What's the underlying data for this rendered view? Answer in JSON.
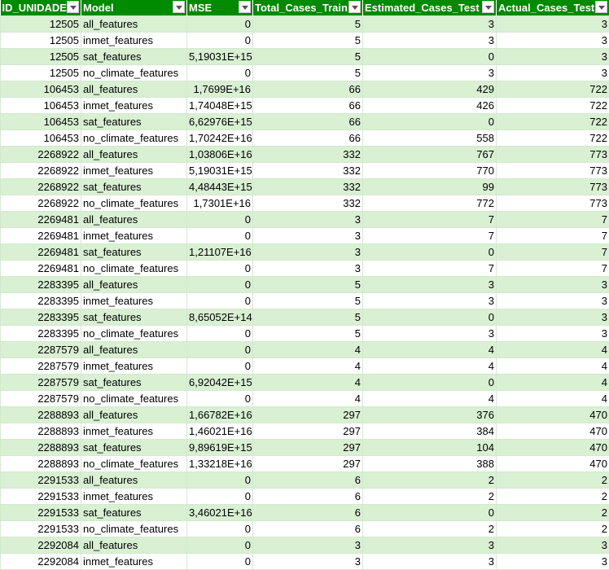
{
  "headers": [
    "ID_UNIDADE",
    "Model",
    "MSE",
    "Total_Cases_Train",
    "Estimated_Cases_Test",
    "Actual_Cases_Test"
  ],
  "rows": [
    [
      "12505",
      "all_features",
      "0",
      "5",
      "3",
      "3"
    ],
    [
      "12505",
      "inmet_features",
      "0",
      "5",
      "3",
      "3"
    ],
    [
      "12505",
      "sat_features",
      "5,19031E+15",
      "5",
      "0",
      "3"
    ],
    [
      "12505",
      "no_climate_features",
      "0",
      "5",
      "3",
      "3"
    ],
    [
      "106453",
      "all_features",
      "1,7699E+16",
      "66",
      "429",
      "722"
    ],
    [
      "106453",
      "inmet_features",
      "1,74048E+15",
      "66",
      "426",
      "722"
    ],
    [
      "106453",
      "sat_features",
      "6,62976E+15",
      "66",
      "0",
      "722"
    ],
    [
      "106453",
      "no_climate_features",
      "1,70242E+16",
      "66",
      "558",
      "722"
    ],
    [
      "2268922",
      "all_features",
      "1,03806E+16",
      "332",
      "767",
      "773"
    ],
    [
      "2268922",
      "inmet_features",
      "5,19031E+15",
      "332",
      "770",
      "773"
    ],
    [
      "2268922",
      "sat_features",
      "4,48443E+15",
      "332",
      "99",
      "773"
    ],
    [
      "2268922",
      "no_climate_features",
      "1,7301E+16",
      "332",
      "772",
      "773"
    ],
    [
      "2269481",
      "all_features",
      "0",
      "3",
      "7",
      "7"
    ],
    [
      "2269481",
      "inmet_features",
      "0",
      "3",
      "7",
      "7"
    ],
    [
      "2269481",
      "sat_features",
      "1,21107E+16",
      "3",
      "0",
      "7"
    ],
    [
      "2269481",
      "no_climate_features",
      "0",
      "3",
      "7",
      "7"
    ],
    [
      "2283395",
      "all_features",
      "0",
      "5",
      "3",
      "3"
    ],
    [
      "2283395",
      "inmet_features",
      "0",
      "5",
      "3",
      "3"
    ],
    [
      "2283395",
      "sat_features",
      "8,65052E+14",
      "5",
      "0",
      "3"
    ],
    [
      "2283395",
      "no_climate_features",
      "0",
      "5",
      "3",
      "3"
    ],
    [
      "2287579",
      "all_features",
      "0",
      "4",
      "4",
      "4"
    ],
    [
      "2287579",
      "inmet_features",
      "0",
      "4",
      "4",
      "4"
    ],
    [
      "2287579",
      "sat_features",
      "6,92042E+15",
      "4",
      "0",
      "4"
    ],
    [
      "2287579",
      "no_climate_features",
      "0",
      "4",
      "4",
      "4"
    ],
    [
      "2288893",
      "all_features",
      "1,66782E+16",
      "297",
      "376",
      "470"
    ],
    [
      "2288893",
      "inmet_features",
      "1,46021E+16",
      "297",
      "384",
      "470"
    ],
    [
      "2288893",
      "sat_features",
      "9,89619E+15",
      "297",
      "104",
      "470"
    ],
    [
      "2288893",
      "no_climate_features",
      "1,33218E+16",
      "297",
      "388",
      "470"
    ],
    [
      "2291533",
      "all_features",
      "0",
      "6",
      "2",
      "2"
    ],
    [
      "2291533",
      "inmet_features",
      "0",
      "6",
      "2",
      "2"
    ],
    [
      "2291533",
      "sat_features",
      "3,46021E+16",
      "6",
      "0",
      "2"
    ],
    [
      "2291533",
      "no_climate_features",
      "0",
      "6",
      "2",
      "2"
    ],
    [
      "2292084",
      "all_features",
      "0",
      "3",
      "3",
      "3"
    ],
    [
      "2292084",
      "inmet_features",
      "0",
      "3",
      "3",
      "3"
    ]
  ],
  "colors": {
    "header_bg": "#008a00",
    "band": "#d9f0d3",
    "border": "#d4e8d0"
  },
  "icons": {
    "filter_dropdown": "chevron-down-icon"
  }
}
